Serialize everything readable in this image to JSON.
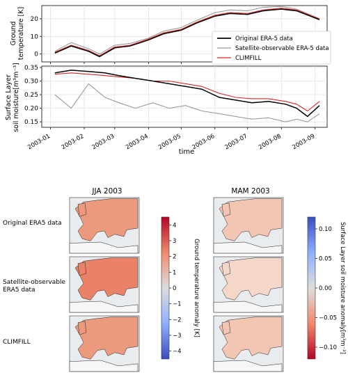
{
  "chart_data": [
    {
      "type": "line",
      "ylabel": "Ground\ntemperature [K]",
      "xlabel": "",
      "yticks": [
        0,
        10,
        20
      ],
      "ylim": [
        -4.5,
        27.5
      ],
      "legend_placement": "lower-right",
      "grid": true,
      "series": [
        {
          "name": "Original ERA-5 data",
          "color": "#000000",
          "x": [
            "2003-01-05",
            "2003-01-20",
            "2003-02-05",
            "2003-02-15",
            "2003-03-01",
            "2003-03-15",
            "2003-04-01",
            "2003-04-15",
            "2003-05-01",
            "2003-05-15",
            "2003-06-01",
            "2003-06-15",
            "2003-07-01",
            "2003-07-15",
            "2003-08-01",
            "2003-08-15",
            "2003-09-05"
          ],
          "y": [
            0.5,
            4.5,
            1.5,
            -1.5,
            3.5,
            4.5,
            8,
            11.5,
            13.5,
            17.5,
            21.5,
            23,
            22.5,
            24.5,
            25.5,
            24.5,
            19.5
          ]
        },
        {
          "name": "Satellite-observable ERA-5 data",
          "color": "#999999",
          "x": [
            "2003-01-05",
            "2003-01-20",
            "2003-02-05",
            "2003-02-15",
            "2003-03-01",
            "2003-03-15",
            "2003-04-01",
            "2003-04-15",
            "2003-05-01",
            "2003-05-15",
            "2003-06-01",
            "2003-06-15",
            "2003-07-01",
            "2003-07-15",
            "2003-08-01",
            "2003-08-15",
            "2003-09-05"
          ],
          "y": [
            1.5,
            6.5,
            3,
            0,
            5,
            6,
            9,
            13,
            15,
            19,
            23.5,
            25,
            24.5,
            26.5,
            27,
            25.5,
            20
          ]
        },
        {
          "name": "CLIMFILL",
          "color": "#d62728",
          "x": [
            "2003-01-05",
            "2003-01-20",
            "2003-02-05",
            "2003-02-15",
            "2003-03-01",
            "2003-03-15",
            "2003-04-01",
            "2003-04-15",
            "2003-05-01",
            "2003-05-15",
            "2003-06-01",
            "2003-06-15",
            "2003-07-01",
            "2003-07-15",
            "2003-08-01",
            "2003-08-15",
            "2003-09-05"
          ],
          "y": [
            1,
            5,
            2,
            -1,
            4,
            5,
            8.5,
            12,
            14,
            18,
            22,
            23.5,
            23,
            25,
            26,
            25,
            20
          ]
        }
      ]
    },
    {
      "type": "line",
      "ylabel": "Surface Layer\nsoil moisture[m³m⁻³]",
      "xlabel": "time",
      "yticks": [
        0.15,
        0.2,
        0.25,
        0.3,
        0.35
      ],
      "ylim": [
        0.13,
        0.355
      ],
      "xticks": [
        "2003-01",
        "2003-02",
        "2003-03",
        "2003-04",
        "2003-05",
        "2003-06",
        "2003-07",
        "2003-08",
        "2003-09"
      ],
      "grid": true,
      "series": [
        {
          "name": "Original ERA-5 data",
          "color": "#000000",
          "x": [
            "2003-01-05",
            "2003-01-20",
            "2003-02-05",
            "2003-02-20",
            "2003-03-05",
            "2003-03-20",
            "2003-04-05",
            "2003-04-20",
            "2003-05-05",
            "2003-05-20",
            "2003-06-05",
            "2003-06-20",
            "2003-07-05",
            "2003-07-20",
            "2003-08-05",
            "2003-08-15",
            "2003-08-25",
            "2003-09-05"
          ],
          "y": [
            0.33,
            0.34,
            0.335,
            0.33,
            0.32,
            0.31,
            0.3,
            0.29,
            0.28,
            0.27,
            0.24,
            0.23,
            0.22,
            0.225,
            0.215,
            0.2,
            0.17,
            0.21
          ]
        },
        {
          "name": "Satellite-observable ERA-5 data",
          "color": "#999999",
          "x": [
            "2003-01-05",
            "2003-01-20",
            "2003-02-05",
            "2003-02-20",
            "2003-03-05",
            "2003-03-20",
            "2003-04-05",
            "2003-04-20",
            "2003-05-05",
            "2003-05-20",
            "2003-06-05",
            "2003-06-20",
            "2003-07-05",
            "2003-07-20",
            "2003-08-05",
            "2003-08-15",
            "2003-08-25",
            "2003-09-05"
          ],
          "y": [
            0.25,
            0.2,
            0.29,
            0.24,
            0.22,
            0.2,
            0.22,
            0.2,
            0.21,
            0.19,
            0.18,
            0.17,
            0.16,
            0.165,
            0.15,
            0.16,
            0.15,
            0.18
          ]
        },
        {
          "name": "CLIMFILL",
          "color": "#d62728",
          "x": [
            "2003-01-05",
            "2003-01-20",
            "2003-02-05",
            "2003-02-20",
            "2003-03-05",
            "2003-03-20",
            "2003-04-05",
            "2003-04-20",
            "2003-05-05",
            "2003-05-20",
            "2003-06-05",
            "2003-06-20",
            "2003-07-05",
            "2003-07-20",
            "2003-08-05",
            "2003-08-15",
            "2003-08-25",
            "2003-09-05"
          ],
          "y": [
            0.325,
            0.33,
            0.325,
            0.32,
            0.315,
            0.31,
            0.3,
            0.3,
            0.29,
            0.28,
            0.255,
            0.24,
            0.235,
            0.235,
            0.225,
            0.215,
            0.19,
            0.225
          ]
        }
      ]
    },
    {
      "type": "heatmap",
      "title": "JJA 2003",
      "row_labels": [
        "Original ERA5 data",
        "Satellite-observable\nERA5 data",
        "CLIMFILL"
      ],
      "colorbar": {
        "label": "Ground temperature anomaly [K]",
        "ticks": [
          -4,
          -3,
          -2,
          -1,
          0,
          1,
          2,
          3,
          4
        ],
        "range": [
          -4.5,
          4.5
        ]
      },
      "panel_tone": [
        "#ec9a7e",
        "#e98268",
        "#ec9a7e"
      ]
    },
    {
      "type": "heatmap",
      "title": "MAM 2003",
      "colorbar": {
        "label": "Surface Layer soil moisture anomaly[m³m⁻³]",
        "ticks": [
          0.1,
          0.05,
          0.0,
          -0.05,
          -0.1
        ],
        "range": [
          -0.12,
          0.12
        ]
      },
      "panel_tone": [
        "#f2c6b3",
        "#f4d7c8",
        "#f2c6b3"
      ]
    }
  ]
}
